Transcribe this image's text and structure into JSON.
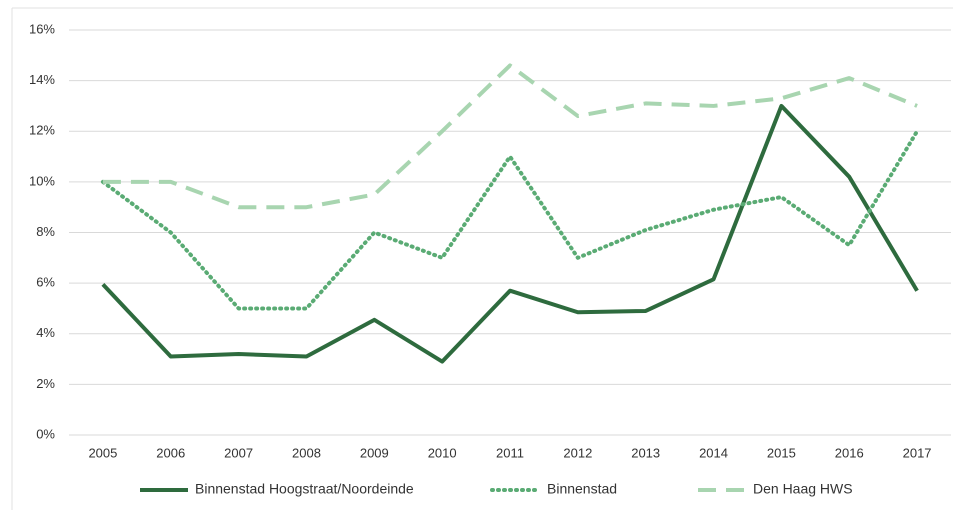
{
  "chart_data": {
    "type": "line",
    "categories": [
      "2005",
      "2006",
      "2007",
      "2008",
      "2009",
      "2010",
      "2011",
      "2012",
      "2013",
      "2014",
      "2015",
      "2016",
      "2017"
    ],
    "series": [
      {
        "name": "Binnenstad Hoogstraat/Noordeinde",
        "color": "#2e6b3e",
        "dash": "solid",
        "values": [
          5.95,
          3.1,
          3.2,
          3.1,
          4.55,
          2.9,
          5.7,
          4.85,
          4.9,
          6.15,
          13.0,
          10.2,
          5.7
        ]
      },
      {
        "name": "Binnenstad",
        "color": "#5aab74",
        "dash": "dotted",
        "values": [
          10.0,
          8.0,
          5.0,
          5.0,
          8.0,
          7.0,
          11.0,
          7.0,
          8.1,
          8.9,
          9.4,
          7.5,
          12.0
        ]
      },
      {
        "name": "Den Haag HWS",
        "color": "#a8d5b0",
        "dash": "dashed",
        "values": [
          10.0,
          10.0,
          9.0,
          9.0,
          9.5,
          12.0,
          14.6,
          12.6,
          13.1,
          13.0,
          13.3,
          14.1,
          13.0
        ]
      }
    ],
    "ylim": [
      0,
      16
    ],
    "yticks": [
      {
        "value": 0,
        "label": "0%"
      },
      {
        "value": 2,
        "label": "2%"
      },
      {
        "value": 4,
        "label": "4%"
      },
      {
        "value": 6,
        "label": "6%"
      },
      {
        "value": 8,
        "label": "8%"
      },
      {
        "value": 10,
        "label": "10%"
      },
      {
        "value": 12,
        "label": "12%"
      },
      {
        "value": 14,
        "label": "14%"
      },
      {
        "value": 16,
        "label": "16%"
      }
    ],
    "grid": true,
    "legend": "bottom"
  }
}
